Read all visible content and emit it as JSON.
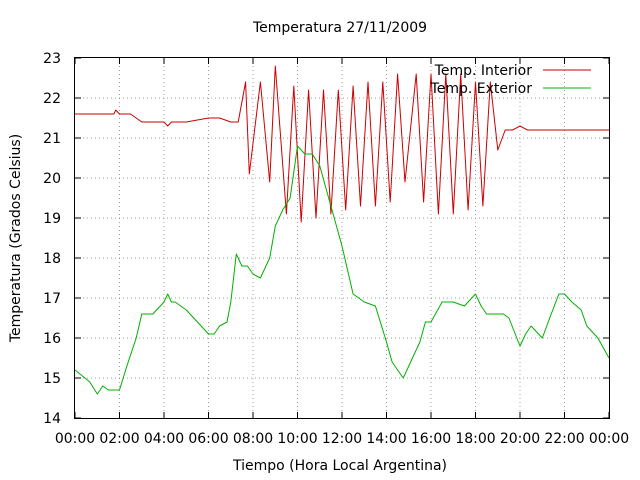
{
  "chart_data": {
    "type": "line",
    "title": "Temperatura 27/11/2009",
    "xlabel": "Tiempo (Hora Local Argentina)",
    "ylabel": "Temperatura (Grados Celsius)",
    "xlim": [
      "00:00",
      "24:00"
    ],
    "ylim": [
      14,
      23
    ],
    "grid": true,
    "legend_position": "top-right",
    "x_tick_labels": [
      "00:00",
      "02:00",
      "04:00",
      "06:00",
      "08:00",
      "10:00",
      "12:00",
      "14:00",
      "16:00",
      "18:00",
      "20:00",
      "22:00",
      "00:00"
    ],
    "y_tick_labels": [
      "14",
      "15",
      "16",
      "17",
      "18",
      "19",
      "20",
      "21",
      "22",
      "23"
    ],
    "series": [
      {
        "name": "Temp. Interior",
        "color": "#cc0000",
        "x": [
          "00:00",
          "01:45",
          "01:50",
          "02:00",
          "02:30",
          "03:00",
          "04:00",
          "04:10",
          "04:20",
          "05:00",
          "06:00",
          "06:30",
          "07:00",
          "07:20",
          "07:40",
          "07:50",
          "08:20",
          "08:45",
          "09:00",
          "09:30",
          "09:50",
          "10:10",
          "10:30",
          "10:50",
          "11:10",
          "11:30",
          "11:50",
          "12:10",
          "12:30",
          "12:50",
          "13:10",
          "13:30",
          "13:50",
          "14:10",
          "14:30",
          "14:50",
          "15:20",
          "15:40",
          "16:00",
          "16:20",
          "16:40",
          "17:00",
          "17:20",
          "17:40",
          "18:00",
          "18:20",
          "18:40",
          "19:00",
          "19:20",
          "19:40",
          "20:00",
          "20:20",
          "21:00",
          "22:00",
          "24:00"
        ],
        "y": [
          21.6,
          21.6,
          21.7,
          21.6,
          21.6,
          21.4,
          21.4,
          21.3,
          21.4,
          21.4,
          21.5,
          21.5,
          21.4,
          21.4,
          22.4,
          20.1,
          22.4,
          19.9,
          22.8,
          19.1,
          22.3,
          18.9,
          22.2,
          19.0,
          22.2,
          19.1,
          22.2,
          19.2,
          22.3,
          19.3,
          22.4,
          19.3,
          22.4,
          19.4,
          22.6,
          19.9,
          22.6,
          19.4,
          22.6,
          19.1,
          22.6,
          19.1,
          22.6,
          19.2,
          22.4,
          19.3,
          22.4,
          20.7,
          21.2,
          21.2,
          21.3,
          21.2,
          21.2,
          21.2,
          21.2
        ]
      },
      {
        "name": "Temp. Exterior",
        "color": "#00b000",
        "x": [
          "00:00",
          "00:40",
          "01:00",
          "01:15",
          "01:30",
          "02:00",
          "02:20",
          "02:45",
          "03:00",
          "03:30",
          "04:00",
          "04:10",
          "04:20",
          "04:30",
          "05:00",
          "05:30",
          "06:00",
          "06:15",
          "06:30",
          "06:50",
          "07:00",
          "07:15",
          "07:30",
          "07:45",
          "08:00",
          "08:20",
          "08:45",
          "09:00",
          "09:20",
          "09:40",
          "10:00",
          "10:20",
          "10:40",
          "11:00",
          "11:30",
          "12:00",
          "12:30",
          "13:00",
          "13:30",
          "14:00",
          "14:15",
          "14:30",
          "14:45",
          "15:00",
          "15:15",
          "15:30",
          "15:45",
          "16:00",
          "16:30",
          "17:00",
          "17:30",
          "18:00",
          "18:15",
          "18:30",
          "19:00",
          "19:15",
          "19:30",
          "20:00",
          "20:15",
          "20:30",
          "21:00",
          "21:20",
          "21:45",
          "22:00",
          "22:20",
          "22:45",
          "23:00",
          "23:30",
          "24:00"
        ],
        "y": [
          15.2,
          14.9,
          14.6,
          14.8,
          14.7,
          14.7,
          15.3,
          16.0,
          16.6,
          16.6,
          16.9,
          17.1,
          16.9,
          16.9,
          16.7,
          16.4,
          16.1,
          16.1,
          16.3,
          16.4,
          16.9,
          18.1,
          17.8,
          17.8,
          17.6,
          17.5,
          18.0,
          18.8,
          19.2,
          19.5,
          20.8,
          20.6,
          20.6,
          20.3,
          19.3,
          18.3,
          17.1,
          16.9,
          16.8,
          15.9,
          15.4,
          15.2,
          15.0,
          15.3,
          15.6,
          15.9,
          16.4,
          16.4,
          16.9,
          16.9,
          16.8,
          17.1,
          16.8,
          16.6,
          16.6,
          16.6,
          16.5,
          15.8,
          16.1,
          16.3,
          16.0,
          16.5,
          17.1,
          17.1,
          16.9,
          16.7,
          16.3,
          16.0,
          15.5
        ]
      }
    ]
  }
}
